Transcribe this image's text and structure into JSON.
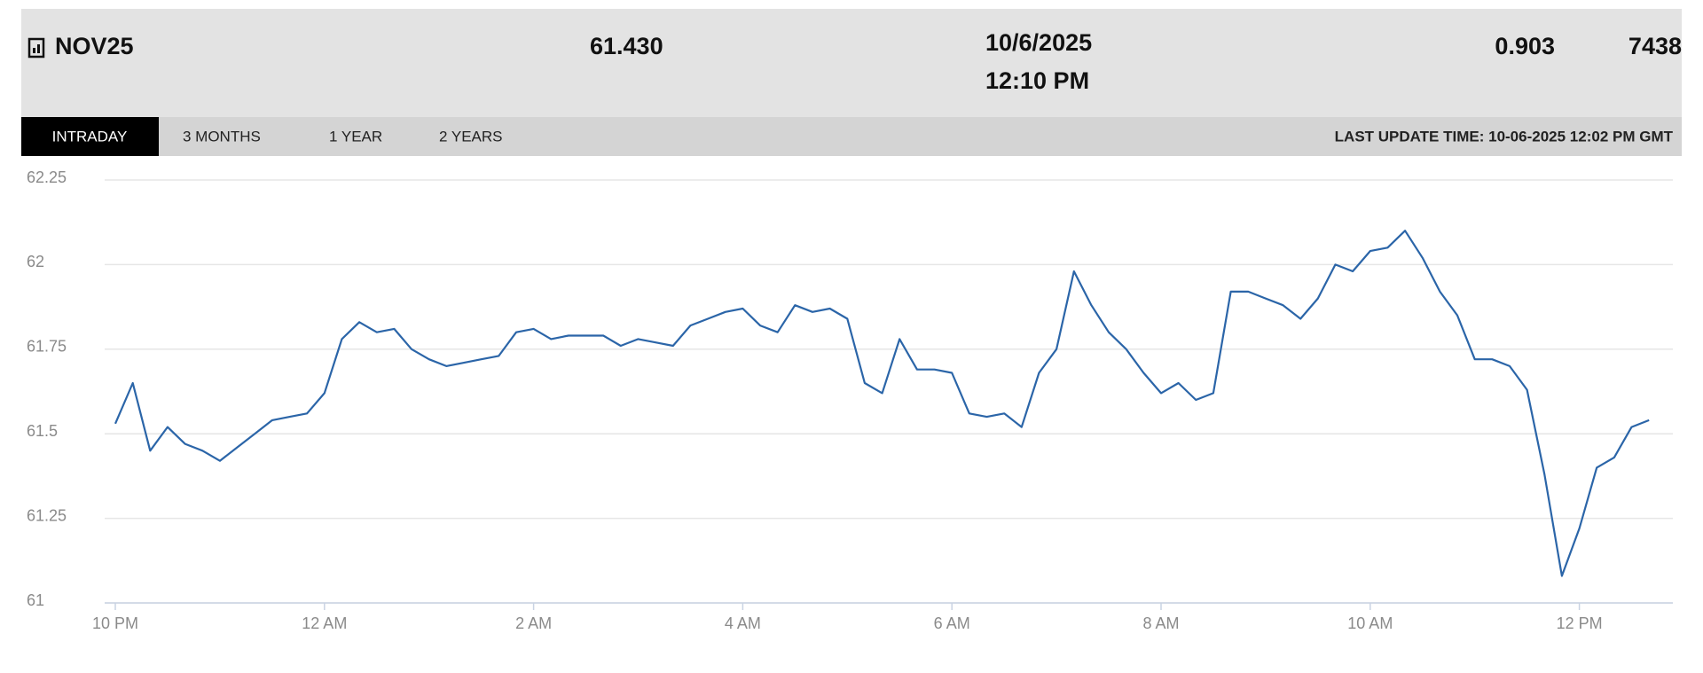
{
  "header": {
    "contract": "NOV25",
    "price": "61.430",
    "date": "10/6/2025",
    "time": "12:10 PM",
    "change": "0.903",
    "volume": "7438"
  },
  "tabs": [
    "INTRADAY",
    "3 MONTHS",
    "1 YEAR",
    "2 YEARS"
  ],
  "last_update": "LAST UPDATE TIME: 10-06-2025 12:02 PM GMT",
  "chart_data": {
    "type": "line",
    "categories": [
      "10 PM",
      null,
      null,
      null,
      null,
      null,
      null,
      null,
      null,
      null,
      null,
      null,
      "12 AM",
      null,
      null,
      null,
      null,
      null,
      null,
      null,
      null,
      null,
      null,
      null,
      "2 AM",
      null,
      null,
      null,
      null,
      null,
      null,
      null,
      null,
      null,
      null,
      null,
      "4 AM",
      null,
      null,
      null,
      null,
      null,
      null,
      null,
      null,
      null,
      null,
      null,
      "6 AM",
      null,
      null,
      null,
      null,
      null,
      null,
      null,
      null,
      null,
      null,
      null,
      "8 AM",
      null,
      null,
      null,
      null,
      null,
      null,
      null,
      null,
      null,
      null,
      null,
      "10 AM",
      null,
      null,
      null,
      null,
      null,
      null,
      null,
      null,
      null,
      null,
      null,
      "12 PM",
      null,
      null,
      null,
      null
    ],
    "series": [
      {
        "name": "NOV25",
        "color": "#2b65a8",
        "values": [
          61.53,
          61.65,
          61.45,
          61.52,
          61.47,
          61.45,
          61.42,
          61.46,
          61.5,
          61.54,
          61.55,
          61.56,
          61.62,
          61.78,
          61.83,
          61.8,
          61.81,
          61.75,
          61.72,
          61.7,
          61.71,
          61.72,
          61.73,
          61.8,
          61.81,
          61.78,
          61.79,
          61.79,
          61.79,
          61.76,
          61.78,
          61.77,
          61.76,
          61.82,
          61.84,
          61.86,
          61.87,
          61.82,
          61.8,
          61.88,
          61.86,
          61.87,
          61.84,
          61.65,
          61.62,
          61.78,
          61.69,
          61.69,
          61.68,
          61.56,
          61.55,
          61.56,
          61.52,
          61.68,
          61.75,
          61.98,
          61.88,
          61.8,
          61.75,
          61.68,
          61.62,
          61.65,
          61.6,
          61.62,
          61.92,
          61.92,
          61.9,
          61.88,
          61.84,
          61.9,
          62.0,
          61.98,
          62.04,
          62.05,
          62.1,
          62.02,
          61.92,
          61.85,
          61.72,
          61.72,
          61.7,
          61.63,
          61.38,
          61.08,
          61.22,
          61.4,
          61.43,
          61.52,
          61.54
        ]
      }
    ],
    "ylim": [
      61,
      62.25
    ],
    "yticks": [
      61,
      61.25,
      61.5,
      61.75,
      62,
      62.25
    ],
    "grid": true
  }
}
